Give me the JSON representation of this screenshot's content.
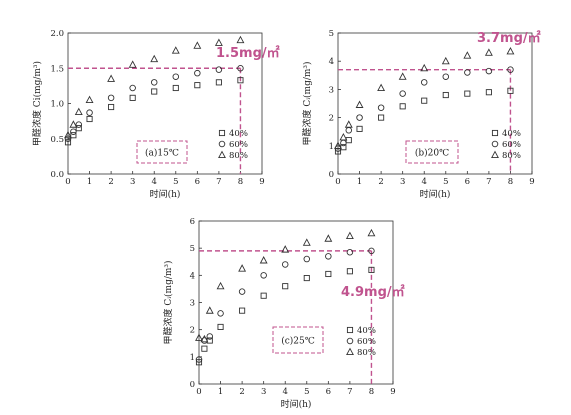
{
  "colors": {
    "axis": "#333333",
    "marker": "#333333",
    "annotation": "#c0538e"
  },
  "chart_data": [
    {
      "type": "scatter",
      "panel_label": "(a)15℃",
      "xlabel": "时间(h)",
      "ylabel": "甲醛浓度 Ci(mg/m³)",
      "xlim": [
        0,
        9
      ],
      "ylim": [
        0,
        2.0
      ],
      "xticks": [
        "0",
        "1",
        "2",
        "3",
        "4",
        "5",
        "6",
        "7",
        "8",
        "9"
      ],
      "yticks": [
        "0.0",
        "0.5",
        "1.0",
        "1.5",
        "2.0"
      ],
      "annotation": {
        "text": "1.5mg/㎡",
        "y": 1.5,
        "x": 8
      },
      "legend_position": "lower-right",
      "series": [
        {
          "name": "40%",
          "marker": "square",
          "x": [
            0,
            0.25,
            0.5,
            1,
            2,
            3,
            4,
            5,
            6,
            7,
            8
          ],
          "y": [
            0.45,
            0.55,
            0.65,
            0.78,
            0.95,
            1.08,
            1.17,
            1.22,
            1.26,
            1.3,
            1.33
          ]
        },
        {
          "name": "60%",
          "marker": "circle",
          "x": [
            0,
            0.25,
            0.5,
            1,
            2,
            3,
            4,
            5,
            6,
            7,
            8
          ],
          "y": [
            0.5,
            0.6,
            0.7,
            0.87,
            1.08,
            1.22,
            1.3,
            1.38,
            1.43,
            1.48,
            1.5
          ]
        },
        {
          "name": "80%",
          "marker": "triangle",
          "x": [
            0,
            0.25,
            0.5,
            1,
            2,
            3,
            4,
            5,
            6,
            7,
            8
          ],
          "y": [
            0.55,
            0.7,
            0.88,
            1.05,
            1.35,
            1.55,
            1.63,
            1.75,
            1.82,
            1.86,
            1.9
          ]
        }
      ]
    },
    {
      "type": "scatter",
      "panel_label": "(b)20℃",
      "xlabel": "时间(h)",
      "ylabel": "甲醛浓度 Cᵢ(mg/m³)",
      "xlim": [
        0,
        9
      ],
      "ylim": [
        0,
        5
      ],
      "xticks": [
        "0",
        "1",
        "2",
        "3",
        "4",
        "5",
        "6",
        "7",
        "8",
        "9"
      ],
      "yticks": [
        "0",
        "1",
        "2",
        "3",
        "4",
        "5"
      ],
      "annotation": {
        "text": "3.7mg/㎡",
        "y": 3.7,
        "x": 8
      },
      "legend_position": "lower-right",
      "series": [
        {
          "name": "40%",
          "marker": "square",
          "x": [
            0,
            0.25,
            0.5,
            1,
            2,
            3,
            4,
            5,
            6,
            7,
            8
          ],
          "y": [
            0.8,
            0.95,
            1.2,
            1.6,
            2.0,
            2.4,
            2.6,
            2.8,
            2.85,
            2.9,
            2.95
          ]
        },
        {
          "name": "60%",
          "marker": "circle",
          "x": [
            0,
            0.25,
            0.5,
            1,
            2,
            3,
            4,
            5,
            6,
            7,
            8
          ],
          "y": [
            0.9,
            1.1,
            1.55,
            2.0,
            2.35,
            2.85,
            3.25,
            3.45,
            3.6,
            3.65,
            3.7
          ]
        },
        {
          "name": "80%",
          "marker": "triangle",
          "x": [
            0,
            0.25,
            0.5,
            1,
            2,
            3,
            4,
            5,
            6,
            7,
            8
          ],
          "y": [
            1.0,
            1.3,
            1.75,
            2.45,
            3.05,
            3.45,
            3.75,
            4.0,
            4.2,
            4.3,
            4.35
          ]
        }
      ]
    },
    {
      "type": "scatter",
      "panel_label": "(c)25℃",
      "xlabel": "时间(h)",
      "ylabel": "甲醛浓度 Cᵢ(mg/m³)",
      "xlim": [
        0,
        9
      ],
      "ylim": [
        0,
        6
      ],
      "xticks": [
        "0",
        "1",
        "2",
        "3",
        "4",
        "5",
        "6",
        "7",
        "8",
        "9"
      ],
      "yticks": [
        "0",
        "1",
        "2",
        "3",
        "4",
        "5",
        "6"
      ],
      "annotation": {
        "text": "4.9mg/㎡",
        "y": 4.9,
        "x": 8
      },
      "legend_position": "lower-right",
      "series": [
        {
          "name": "40%",
          "marker": "square",
          "x": [
            0,
            0.25,
            0.5,
            1,
            2,
            3,
            4,
            5,
            6,
            7,
            8
          ],
          "y": [
            0.8,
            1.3,
            1.6,
            2.1,
            2.7,
            3.25,
            3.6,
            3.9,
            4.05,
            4.15,
            4.2
          ]
        },
        {
          "name": "60%",
          "marker": "circle",
          "x": [
            0,
            0.25,
            0.5,
            1,
            2,
            3,
            4,
            5,
            6,
            7,
            8
          ],
          "y": [
            0.9,
            1.6,
            1.75,
            2.6,
            3.4,
            4.0,
            4.4,
            4.6,
            4.7,
            4.85,
            4.9
          ]
        },
        {
          "name": "80%",
          "marker": "triangle",
          "x": [
            0,
            0.25,
            0.5,
            1,
            2,
            3,
            4,
            5,
            6,
            7,
            8
          ],
          "y": [
            1.7,
            1.65,
            2.7,
            3.6,
            4.25,
            4.55,
            4.95,
            5.2,
            5.35,
            5.45,
            5.55
          ]
        }
      ]
    }
  ]
}
